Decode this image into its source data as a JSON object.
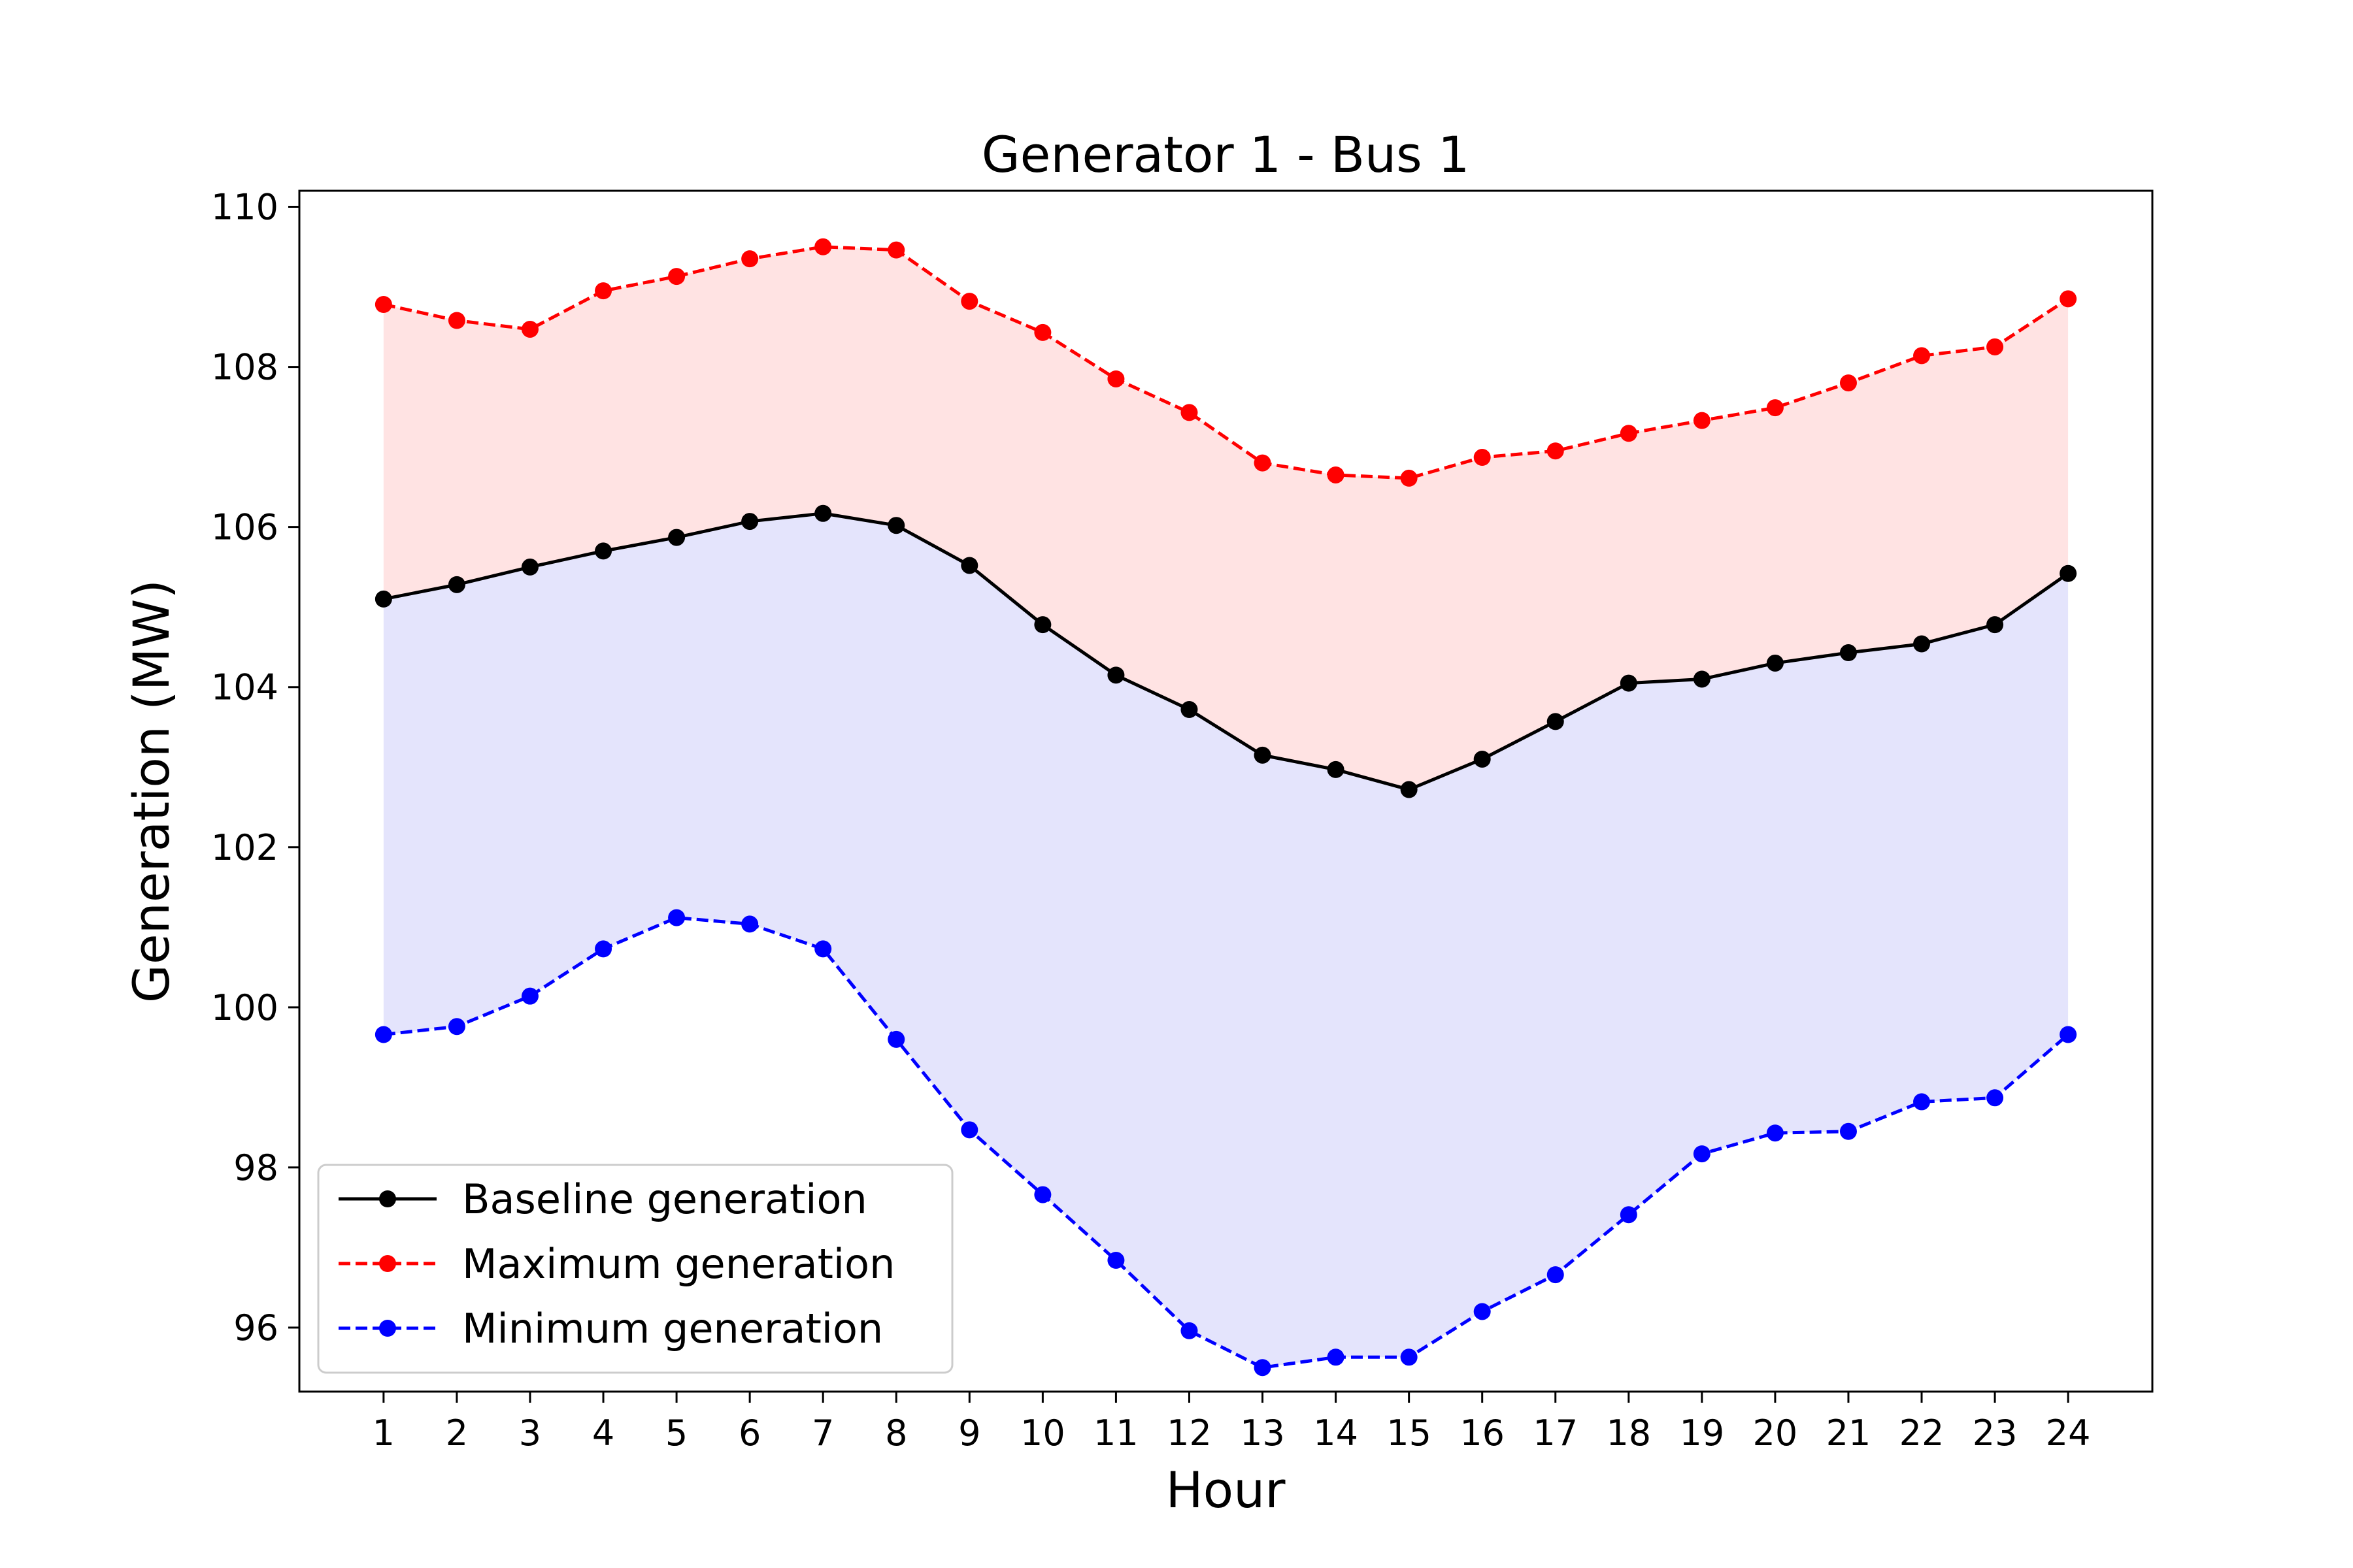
{
  "chart_data": {
    "type": "line",
    "title": "Generator 1 - Bus 1",
    "xlabel": "Hour",
    "ylabel": "Generation (MW)",
    "xlim": [
      -0.15,
      25.15
    ],
    "ylim": [
      95.2,
      110.2
    ],
    "xticks": [
      "1",
      "2",
      "3",
      "4",
      "5",
      "6",
      "7",
      "8",
      "9",
      "10",
      "11",
      "12",
      "13",
      "14",
      "15",
      "16",
      "17",
      "18",
      "19",
      "20",
      "21",
      "22",
      "23",
      "24"
    ],
    "yticks": [
      "96",
      "98",
      "100",
      "102",
      "104",
      "106",
      "108",
      "110"
    ],
    "grid": false,
    "legend_position": "lower-left",
    "x": [
      1,
      2,
      3,
      4,
      5,
      6,
      7,
      8,
      9,
      10,
      11,
      12,
      13,
      14,
      15,
      16,
      17,
      18,
      19,
      20,
      21,
      22,
      23,
      24
    ],
    "series": [
      {
        "name": "Baseline generation",
        "color": "#000000",
        "linestyle": "solid",
        "values": [
          105.1,
          105.28,
          105.5,
          105.7,
          105.87,
          106.07,
          106.17,
          106.02,
          105.52,
          104.78,
          104.15,
          103.72,
          103.15,
          102.97,
          102.72,
          103.1,
          103.57,
          104.05,
          104.1,
          104.3,
          104.43,
          104.54,
          104.78,
          105.42
        ]
      },
      {
        "name": "Maximum generation",
        "color": "#ff0000",
        "linestyle": "dashed",
        "values": [
          108.78,
          108.58,
          108.47,
          108.95,
          109.13,
          109.35,
          109.5,
          109.46,
          108.82,
          108.43,
          107.85,
          107.43,
          106.8,
          106.65,
          106.61,
          106.87,
          106.95,
          107.17,
          107.33,
          107.49,
          107.8,
          108.14,
          108.25,
          108.85
        ]
      },
      {
        "name": "Minimum generation",
        "color": "#0000ff",
        "linestyle": "dashed",
        "values": [
          99.66,
          99.76,
          100.14,
          100.73,
          101.12,
          101.04,
          100.73,
          99.6,
          98.47,
          97.66,
          96.84,
          95.96,
          95.5,
          95.63,
          95.63,
          96.2,
          96.66,
          97.41,
          98.17,
          98.43,
          98.45,
          98.82,
          98.87,
          99.66
        ]
      }
    ],
    "fills": [
      {
        "between": [
          "Baseline generation",
          "Maximum generation"
        ],
        "color": "#ffe3e3"
      },
      {
        "between": [
          "Minimum generation",
          "Baseline generation"
        ],
        "color": "#e4e4fc"
      }
    ]
  }
}
